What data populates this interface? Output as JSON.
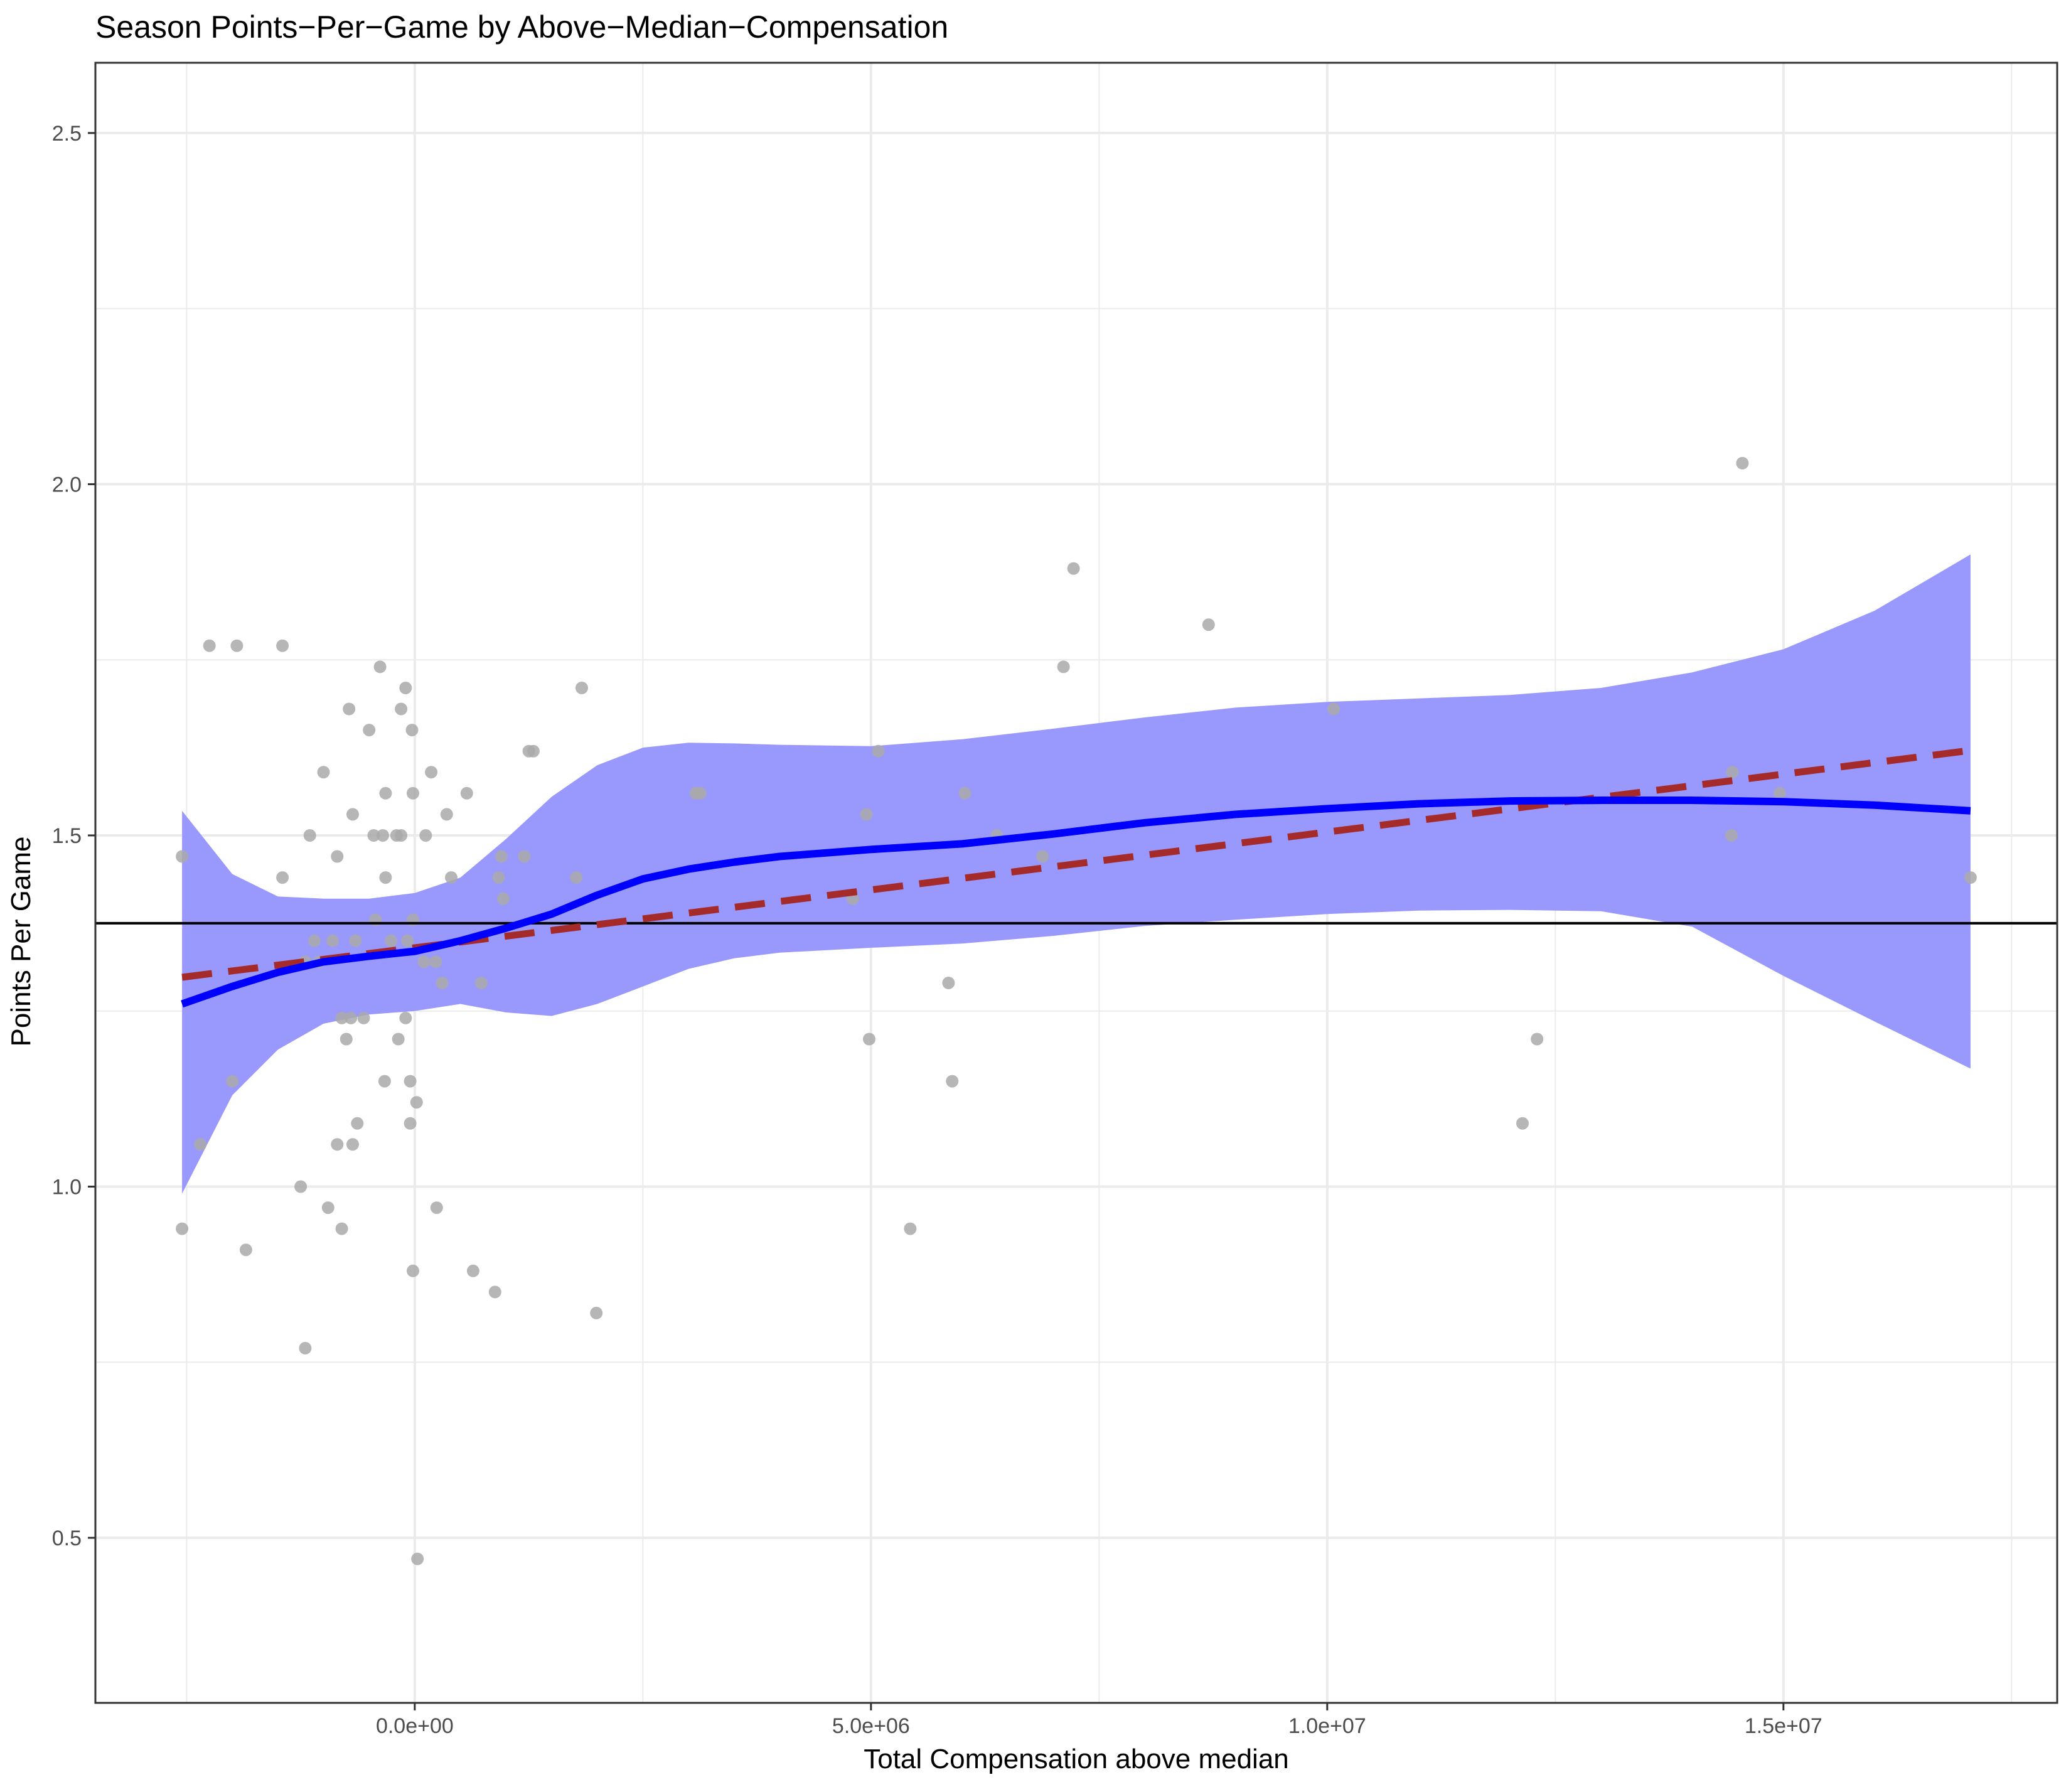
{
  "chart_data": {
    "type": "scatter",
    "title": "Season Points−Per−Game by Above−Median−Compensation",
    "xlabel": "Total Compensation above median",
    "ylabel": "Points Per Game",
    "xlim": [
      -3500000,
      18000000
    ],
    "ylim": [
      0.265,
      2.6
    ],
    "x_ticks": [
      {
        "value": 0,
        "label": "0.0e+00"
      },
      {
        "value": 5000000,
        "label": "5.0e+06"
      },
      {
        "value": 10000000,
        "label": "1.0e+07"
      },
      {
        "value": 15000000,
        "label": "1.5e+07"
      }
    ],
    "y_ticks": [
      {
        "value": 0.5,
        "label": "0.5"
      },
      {
        "value": 1.0,
        "label": "1.0"
      },
      {
        "value": 1.5,
        "label": "1.5"
      },
      {
        "value": 2.0,
        "label": "2.0"
      },
      {
        "value": 2.5,
        "label": "2.5"
      }
    ],
    "grid": true,
    "colors": {
      "points": "#a9a9a9",
      "loess_line": "#0000ff",
      "ribbon": "#9999fd",
      "linear_fit": "#a52a2a",
      "reference_line": "#000000",
      "grid": "#ebebeb"
    },
    "horizontal_reference": 1.375,
    "series": [
      {
        "type": "scatter",
        "points": [
          [
            -2550000,
            1.47
          ],
          [
            -2550000,
            0.94
          ],
          [
            -2350000,
            1.06
          ],
          [
            -2250000,
            1.77
          ],
          [
            -1950000,
            1.77
          ],
          [
            -1850000,
            0.91
          ],
          [
            -1450000,
            1.77
          ],
          [
            -1450000,
            1.44
          ],
          [
            -2000000,
            1.15
          ],
          [
            -1250000,
            1.0
          ],
          [
            -1200000,
            1.32
          ],
          [
            -1150000,
            1.5
          ],
          [
            -1200000,
            0.77
          ],
          [
            -1100000,
            1.35
          ],
          [
            -1050000,
            1.32
          ],
          [
            -1000000,
            1.59
          ],
          [
            -950000,
            0.97
          ],
          [
            -900000,
            1.35
          ],
          [
            -850000,
            1.06
          ],
          [
            -850000,
            1.47
          ],
          [
            -800000,
            0.94
          ],
          [
            -800000,
            1.24
          ],
          [
            -750000,
            1.21
          ],
          [
            -700000,
            1.24
          ],
          [
            -720000,
            1.68
          ],
          [
            -680000,
            1.53
          ],
          [
            -680000,
            1.06
          ],
          [
            -650000,
            1.35
          ],
          [
            -630000,
            1.09
          ],
          [
            -560000,
            1.24
          ],
          [
            -500000,
            1.65
          ],
          [
            -450000,
            1.5
          ],
          [
            -430000,
            1.38
          ],
          [
            -380000,
            1.74
          ],
          [
            -350000,
            1.5
          ],
          [
            -320000,
            1.56
          ],
          [
            -320000,
            1.44
          ],
          [
            -330000,
            1.15
          ],
          [
            -260000,
            1.35
          ],
          [
            -200000,
            1.5
          ],
          [
            -180000,
            1.21
          ],
          [
            -150000,
            1.68
          ],
          [
            -150000,
            1.5
          ],
          [
            -100000,
            1.71
          ],
          [
            -100000,
            1.24
          ],
          [
            -80000,
            1.35
          ],
          [
            -50000,
            1.15
          ],
          [
            -50000,
            1.09
          ],
          [
            -30000,
            1.65
          ],
          [
            -20000,
            1.56
          ],
          [
            -20000,
            1.38
          ],
          [
            -20000,
            0.88
          ],
          [
            20000,
            1.12
          ],
          [
            30000,
            0.47
          ],
          [
            100000,
            1.32
          ],
          [
            120000,
            1.5
          ],
          [
            180000,
            1.59
          ],
          [
            230000,
            1.32
          ],
          [
            240000,
            0.97
          ],
          [
            300000,
            1.29
          ],
          [
            350000,
            1.53
          ],
          [
            400000,
            1.44
          ],
          [
            570000,
            1.56
          ],
          [
            640000,
            0.88
          ],
          [
            730000,
            1.29
          ],
          [
            880000,
            0.85
          ],
          [
            920000,
            1.44
          ],
          [
            950000,
            1.47
          ],
          [
            970000,
            1.41
          ],
          [
            1200000,
            1.47
          ],
          [
            1250000,
            1.62
          ],
          [
            1300000,
            1.62
          ],
          [
            1770000,
            1.44
          ],
          [
            1830000,
            1.71
          ],
          [
            1990000,
            0.82
          ],
          [
            3080000,
            1.56
          ],
          [
            3130000,
            1.56
          ],
          [
            4800000,
            1.41
          ],
          [
            4950000,
            1.53
          ],
          [
            4980000,
            1.21
          ],
          [
            5080000,
            1.62
          ],
          [
            5430000,
            0.94
          ],
          [
            5850000,
            1.29
          ],
          [
            5890000,
            1.15
          ],
          [
            6030000,
            1.56
          ],
          [
            6380000,
            1.5
          ],
          [
            6880000,
            1.47
          ],
          [
            7110000,
            1.74
          ],
          [
            7220000,
            1.88
          ],
          [
            8700000,
            1.8
          ],
          [
            10070000,
            1.68
          ],
          [
            12140000,
            1.09
          ],
          [
            12300000,
            1.21
          ],
          [
            14430000,
            1.5
          ],
          [
            14440000,
            1.59
          ],
          [
            14550000,
            2.03
          ],
          [
            14960000,
            1.56
          ],
          [
            17050000,
            1.44
          ]
        ]
      },
      {
        "type": "loess",
        "x": [
          -2550000,
          -2000000,
          -1500000,
          -1000000,
          -500000,
          0,
          500000,
          1000000,
          1500000,
          2000000,
          2500000,
          3000000,
          3500000,
          4000000,
          5000000,
          6000000,
          7000000,
          8000000,
          9000000,
          10000000,
          11000000,
          12000000,
          13000000,
          14000000,
          15000000,
          16000000,
          17050000
        ],
        "y": [
          1.26,
          1.285,
          1.305,
          1.32,
          1.328,
          1.335,
          1.35,
          1.368,
          1.388,
          1.415,
          1.438,
          1.452,
          1.462,
          1.47,
          1.48,
          1.488,
          1.502,
          1.518,
          1.53,
          1.538,
          1.545,
          1.549,
          1.55,
          1.55,
          1.548,
          1.543,
          1.535
        ],
        "ymin": [
          0.99,
          1.13,
          1.195,
          1.232,
          1.245,
          1.25,
          1.26,
          1.248,
          1.243,
          1.26,
          1.285,
          1.31,
          1.325,
          1.333,
          1.34,
          1.346,
          1.357,
          1.371,
          1.38,
          1.388,
          1.393,
          1.394,
          1.392,
          1.37,
          1.3,
          1.235,
          1.168
        ],
        "ymax": [
          1.535,
          1.445,
          1.413,
          1.41,
          1.41,
          1.418,
          1.44,
          1.495,
          1.555,
          1.6,
          1.625,
          1.632,
          1.631,
          1.629,
          1.627,
          1.637,
          1.652,
          1.668,
          1.682,
          1.69,
          1.695,
          1.7,
          1.71,
          1.732,
          1.765,
          1.82,
          1.9
        ]
      },
      {
        "type": "linear_fit",
        "x": [
          -2550000,
          17050000
        ],
        "y": [
          1.298,
          1.621
        ]
      }
    ]
  }
}
